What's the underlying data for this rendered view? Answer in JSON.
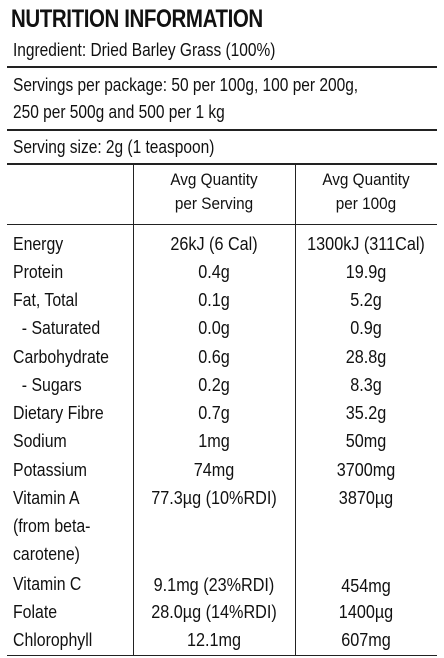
{
  "title": "NUTRITION INFORMATION",
  "ingredient": "Ingredient: Dried Barley Grass (100%)",
  "servings_line1": "Servings per package:   50 per 100g, 100 per 200g,",
  "servings_line2": "250 per 500g and 500 per 1 kg",
  "serving_size": "Serving size:   2g  (1 teaspoon)",
  "headers": {
    "per_serving": [
      "Avg Quantity",
      "per Serving"
    ],
    "per_100g": [
      "Avg Quantity",
      "per 100g"
    ]
  },
  "rows": [
    {
      "label": "Energy",
      "per_serving": "26kJ (6 Cal)",
      "per_100g": "1300kJ (311Cal)"
    },
    {
      "label": "Protein",
      "per_serving": "0.4g",
      "per_100g": "19.9g"
    },
    {
      "label": "Fat, Total",
      "per_serving": "0.1g",
      "per_100g": "5.2g"
    },
    {
      "label": "  - Saturated",
      "per_serving": "0.0g",
      "per_100g": "0.9g"
    },
    {
      "label": "Carbohydrate",
      "per_serving": "0.6g",
      "per_100g": "28.8g"
    },
    {
      "label": "  - Sugars",
      "per_serving": "0.2g",
      "per_100g": "8.3g"
    },
    {
      "label": "Dietary Fibre",
      "per_serving": "0.7g",
      "per_100g": "35.2g"
    },
    {
      "label": "Sodium",
      "per_serving": "1mg",
      "per_100g": "50mg"
    },
    {
      "label": "Potassium",
      "per_serving": "74mg",
      "per_100g": "3700mg"
    },
    {
      "label": "Vitamin A",
      "label_extra": [
        "(from beta-",
        "carotene)"
      ],
      "per_serving": "77.3µg (10%RDI)",
      "per_100g": "3870µg"
    },
    {
      "label": "Vitamin C",
      "per_serving": "9.1mg (23%RDI)",
      "per_100g": "454mg"
    },
    {
      "label": "Folate",
      "per_serving": "28.0µg (14%RDI)",
      "per_100g": "1400µg"
    },
    {
      "label": "Chlorophyll",
      "per_serving": "12.1mg",
      "per_100g": "607mg"
    }
  ]
}
